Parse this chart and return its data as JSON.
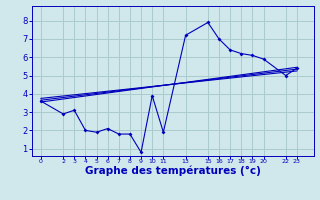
{
  "background_color": "#d0e8ec",
  "grid_color": "#aacccc",
  "line_color": "#0000bb",
  "xlabel": "Graphe des températures (°c)",
  "xlabel_fontsize": 7.5,
  "ylabel_values": [
    1,
    2,
    3,
    4,
    5,
    6,
    7,
    8
  ],
  "ylim": [
    0.6,
    8.8
  ],
  "xlim": [
    -0.8,
    24.5
  ],
  "xtick_positions": [
    0,
    2,
    3,
    4,
    5,
    6,
    7,
    8,
    9,
    10,
    11,
    13,
    15,
    16,
    17,
    18,
    19,
    20,
    22,
    23
  ],
  "xtick_labels": [
    "0",
    "2",
    "3",
    "4",
    "5",
    "6",
    "7",
    "8",
    "9",
    "10",
    "11",
    "13",
    "15",
    "16",
    "17",
    "18",
    "19",
    "20",
    "22",
    "23"
  ],
  "series_main": {
    "x": [
      0,
      2,
      3,
      4,
      5,
      6,
      7,
      8,
      9,
      10,
      11,
      13,
      15,
      16,
      17,
      18,
      19,
      20,
      22,
      23
    ],
    "y": [
      3.6,
      2.9,
      3.1,
      2.0,
      1.9,
      2.1,
      1.8,
      1.8,
      0.8,
      3.9,
      1.9,
      7.2,
      7.9,
      7.0,
      6.4,
      6.2,
      6.1,
      5.9,
      5.0,
      5.4
    ]
  },
  "series_lines": [
    {
      "x": [
        0,
        23
      ],
      "y": [
        3.55,
        5.45
      ]
    },
    {
      "x": [
        0,
        23
      ],
      "y": [
        3.65,
        5.35
      ]
    },
    {
      "x": [
        0,
        23
      ],
      "y": [
        3.75,
        5.25
      ]
    }
  ]
}
